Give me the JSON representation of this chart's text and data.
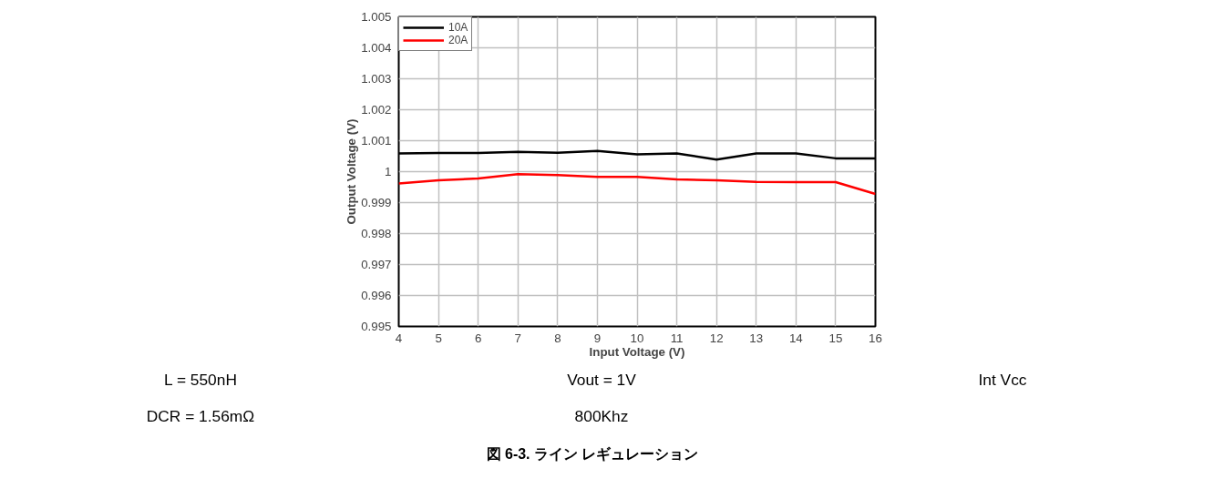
{
  "chart_data": {
    "type": "line",
    "title": "図 6-3. ライン レギュレーション",
    "xlabel": "Input Voltage (V)",
    "ylabel": "Output Voltage (V)",
    "x": [
      4,
      5,
      6,
      7,
      8,
      9,
      10,
      11,
      12,
      13,
      14,
      15,
      16
    ],
    "series": [
      {
        "name": "10A",
        "color": "#000000",
        "values": [
          1.00059,
          1.0006,
          1.0006,
          1.00064,
          1.00061,
          1.00067,
          1.00056,
          1.00059,
          1.00039,
          1.00059,
          1.00059,
          1.00043,
          1.00043
        ]
      },
      {
        "name": "20A",
        "color": "#ff0000",
        "values": [
          0.99962,
          0.99972,
          0.99978,
          0.99992,
          0.99989,
          0.99983,
          0.99983,
          0.99975,
          0.99972,
          0.99967,
          0.99966,
          0.99966,
          0.99928
        ]
      }
    ],
    "xlim": [
      4,
      16
    ],
    "xticks": [
      4,
      5,
      6,
      7,
      8,
      9,
      10,
      11,
      12,
      13,
      14,
      15,
      16
    ],
    "ylim": [
      0.995,
      1.005
    ],
    "yticks": [
      0.995,
      0.996,
      0.997,
      0.998,
      0.999,
      {
        "value": 1,
        "label": "1"
      },
      1.001,
      1.002,
      1.003,
      1.004,
      1.005
    ],
    "grid": true,
    "legend": "top left",
    "marker": "none",
    "line_style": "solid",
    "annotations": [
      "L = 550nH",
      "Vout = 1V",
      "Int Vcc",
      "DCR = 1.56mΩ",
      "800Khz"
    ]
  }
}
